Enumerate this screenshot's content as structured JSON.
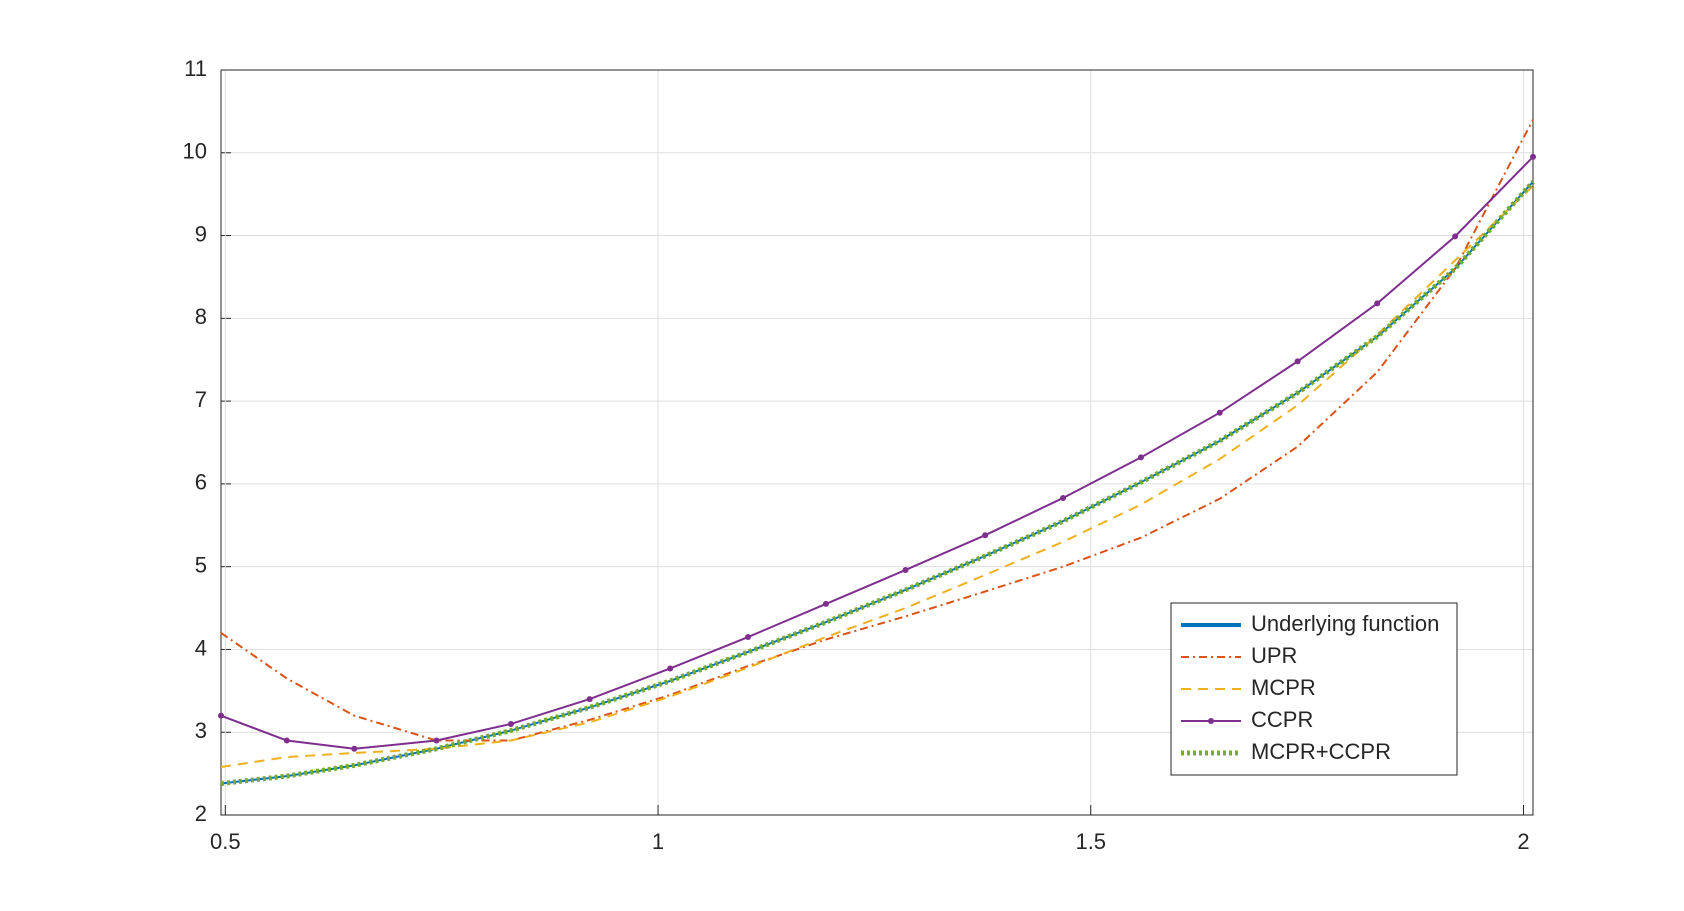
{
  "chart_data": {
    "type": "line",
    "x": [
      0.495,
      0.571,
      0.649,
      0.744,
      0.83,
      0.921,
      1.014,
      1.104,
      1.194,
      1.286,
      1.378,
      1.468,
      1.558,
      1.649,
      1.739,
      1.831,
      1.921,
      2.011
    ],
    "series": [
      {
        "name": "Underlying function",
        "color": "#0072bd",
        "line_style": "-",
        "values": [
          2.38,
          2.47,
          2.6,
          2.8,
          3.02,
          3.3,
          3.62,
          3.97,
          4.33,
          4.72,
          5.13,
          5.55,
          6.02,
          6.52,
          7.1,
          7.78,
          8.6,
          9.65
        ]
      },
      {
        "name": "UPR",
        "color": "#d95319",
        "line_style": "-.",
        "values": [
          4.2,
          3.65,
          3.2,
          2.9,
          2.9,
          3.15,
          3.45,
          3.8,
          4.12,
          4.4,
          4.7,
          5.0,
          5.35,
          5.82,
          6.45,
          7.35,
          8.6,
          10.4
        ]
      },
      {
        "name": "MCPR",
        "color": "#edb120",
        "line_style": "--",
        "values": [
          2.58,
          2.7,
          2.75,
          2.8,
          2.9,
          3.12,
          3.43,
          3.78,
          4.15,
          4.5,
          4.9,
          5.3,
          5.75,
          6.3,
          6.95,
          7.8,
          8.7,
          9.6
        ]
      },
      {
        "name": "CCPR",
        "color": "#7e2f8e",
        "line_style": "-",
        "marker": ".",
        "values": [
          3.2,
          2.9,
          2.8,
          2.9,
          3.1,
          3.4,
          3.77,
          4.15,
          4.55,
          4.96,
          5.38,
          5.83,
          6.32,
          6.86,
          7.48,
          8.18,
          8.99,
          9.95
        ]
      },
      {
        "name": "MCPR+CCPR",
        "color": "#77ac30",
        "line_style": ":",
        "values": [
          2.38,
          2.47,
          2.6,
          2.8,
          3.02,
          3.3,
          3.62,
          3.97,
          4.33,
          4.72,
          5.13,
          5.55,
          6.02,
          6.52,
          7.1,
          7.78,
          8.6,
          9.65
        ]
      }
    ],
    "xlim": [
      0.495,
      2.011
    ],
    "xticks": [
      0.5,
      1,
      1.5,
      2
    ],
    "ylim": [
      2,
      11
    ],
    "yticks": [
      2,
      3,
      4,
      5,
      6,
      7,
      8,
      9,
      10,
      11
    ],
    "grid": true,
    "legend": "southeast"
  }
}
